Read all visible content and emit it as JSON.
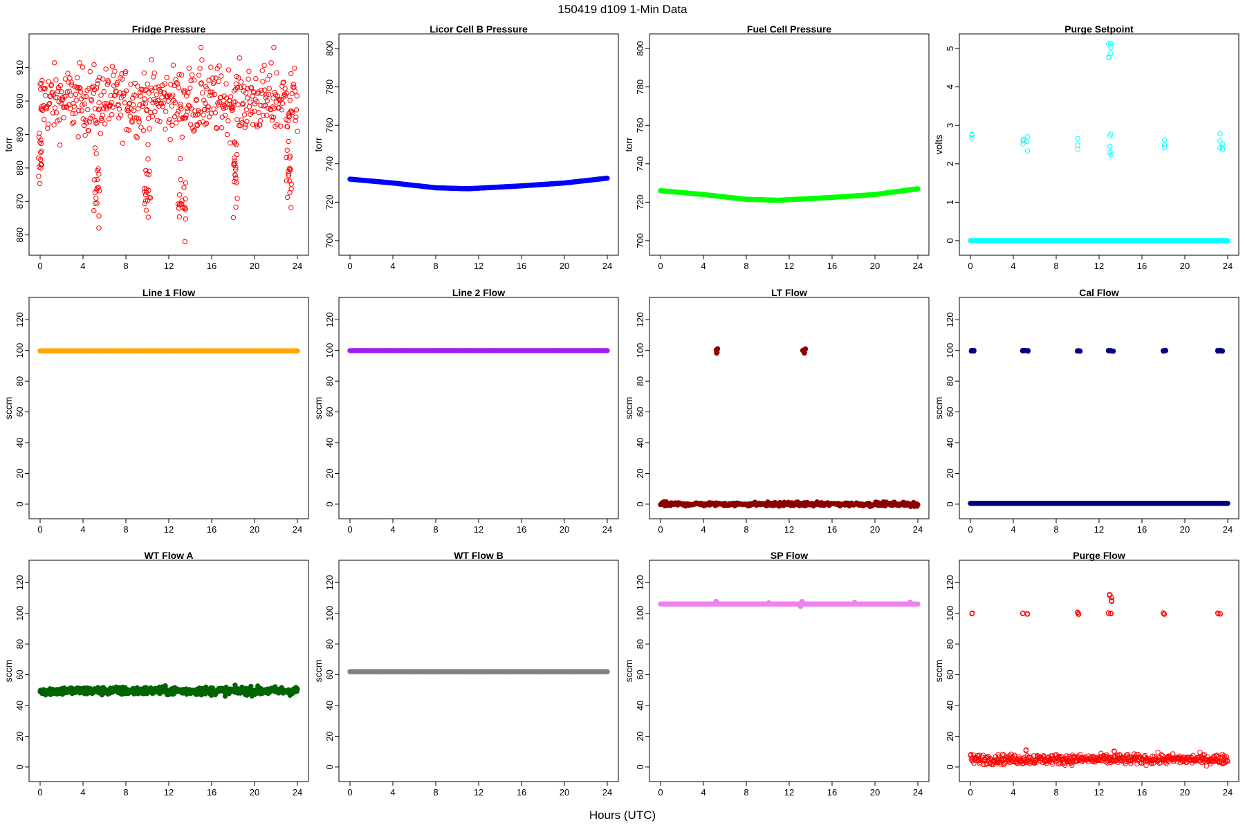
{
  "figure": {
    "title": "150419   d109   1-Min Data",
    "xlabel": "Hours (UTC)"
  },
  "chart_data": [
    {
      "id": "fridge",
      "type": "scatter",
      "title": "Fridge Pressure",
      "ylabel": "torr",
      "color": "#ff0000",
      "marker": "open-circle",
      "xlim": [
        0,
        24
      ],
      "xticks": [
        0,
        4,
        8,
        12,
        16,
        20,
        24
      ],
      "ylim": [
        856,
        918
      ],
      "yticks": [
        860,
        870,
        880,
        890,
        900,
        910
      ],
      "series": [
        {
          "pattern": "noisy",
          "base": [
            [
              0,
              900
            ],
            [
              24,
              900
            ]
          ],
          "noise": 5,
          "dips": [
            [
              0,
              885,
              0.3
            ],
            [
              5.3,
              873,
              0.6
            ],
            [
              10,
              872,
              0.6
            ],
            [
              13.2,
              868,
              0.8
            ],
            [
              18.2,
              877,
              0.4
            ],
            [
              23.2,
              877,
              0.5
            ]
          ],
          "outliers": [
            [
              15,
              916
            ],
            [
              21.8,
              916
            ],
            [
              13.5,
              858
            ]
          ]
        }
      ]
    },
    {
      "id": "licor",
      "type": "scatter",
      "title": "Licor Cell B Pressure",
      "ylabel": "torr",
      "color": "#0000ff",
      "marker": "filled-circle",
      "xlim": [
        0,
        24
      ],
      "xticks": [
        0,
        4,
        8,
        12,
        16,
        20,
        24
      ],
      "ylim": [
        696,
        804
      ],
      "yticks": [
        700,
        720,
        740,
        760,
        780,
        800
      ],
      "series": [
        {
          "pattern": "line",
          "base": [
            [
              0,
              732
            ],
            [
              4,
              730
            ],
            [
              8,
              727.5
            ],
            [
              11,
              727
            ],
            [
              16,
              728.5
            ],
            [
              20,
              730
            ],
            [
              24,
              732.5
            ]
          ]
        }
      ]
    },
    {
      "id": "fuelcell",
      "type": "scatter",
      "title": "Fuel Cell Pressure",
      "ylabel": "torr",
      "color": "#00ff00",
      "marker": "filled-circle",
      "xlim": [
        0,
        24
      ],
      "xticks": [
        0,
        4,
        8,
        12,
        16,
        20,
        24
      ],
      "ylim": [
        696,
        804
      ],
      "yticks": [
        700,
        720,
        740,
        760,
        780,
        800
      ],
      "series": [
        {
          "pattern": "line",
          "base": [
            [
              0,
              726
            ],
            [
              4,
              724
            ],
            [
              8,
              721.5
            ],
            [
              11,
              721
            ],
            [
              16,
              722.5
            ],
            [
              20,
              724
            ],
            [
              24,
              727
            ]
          ]
        }
      ]
    },
    {
      "id": "purge_setpoint",
      "type": "scatter",
      "title": "Purge Setpoint",
      "ylabel": "volts",
      "color": "#00ffff",
      "marker": "open-circle",
      "xlim": [
        0,
        24
      ],
      "xticks": [
        0,
        4,
        8,
        12,
        16,
        20,
        24
      ],
      "ylim": [
        -0.2,
        5.2
      ],
      "yticks": [
        0,
        1,
        2,
        3,
        4,
        5
      ],
      "series": [
        {
          "pattern": "baseline-with-events",
          "baseline": 0,
          "events": [
            [
              0.15,
              2.55
            ],
            [
              4.9,
              2.55
            ],
            [
              5.3,
              2.58
            ],
            [
              10,
              2.5
            ],
            [
              13,
              2.55
            ],
            [
              13.1,
              2.5
            ],
            [
              12.9,
              4.97
            ],
            [
              13.1,
              4.97
            ],
            [
              18.1,
              2.5
            ],
            [
              23.3,
              2.55
            ],
            [
              23.5,
              2.6
            ]
          ]
        }
      ]
    },
    {
      "id": "line1",
      "type": "scatter",
      "title": "Line 1 Flow",
      "ylabel": "sccm",
      "color": "#ffa500",
      "marker": "filled-circle",
      "xlim": [
        0,
        24
      ],
      "xticks": [
        0,
        4,
        8,
        12,
        16,
        20,
        24
      ],
      "ylim": [
        -5,
        130
      ],
      "yticks": [
        0,
        20,
        40,
        60,
        80,
        100,
        120
      ],
      "series": [
        {
          "pattern": "line",
          "base": [
            [
              0,
              99.7
            ],
            [
              24,
              99.7
            ]
          ]
        }
      ]
    },
    {
      "id": "line2",
      "type": "scatter",
      "title": "Line 2 Flow",
      "ylabel": "sccm",
      "color": "#a020f0",
      "marker": "filled-circle",
      "xlim": [
        0,
        24
      ],
      "xticks": [
        0,
        4,
        8,
        12,
        16,
        20,
        24
      ],
      "ylim": [
        -5,
        130
      ],
      "yticks": [
        0,
        20,
        40,
        60,
        80,
        100,
        120
      ],
      "series": [
        {
          "pattern": "line",
          "base": [
            [
              0,
              99.9
            ],
            [
              24,
              99.9
            ]
          ]
        }
      ]
    },
    {
      "id": "lt",
      "type": "scatter",
      "title": "LT Flow",
      "ylabel": "sccm",
      "color": "#8b0000",
      "marker": "filled-circle",
      "xlim": [
        0,
        24
      ],
      "xticks": [
        0,
        4,
        8,
        12,
        16,
        20,
        24
      ],
      "ylim": [
        -5,
        130
      ],
      "yticks": [
        0,
        20,
        40,
        60,
        80,
        100,
        120
      ],
      "series": [
        {
          "pattern": "baseline-with-events",
          "baseline": 0,
          "noise": 1,
          "events": [
            [
              5.2,
              100
            ],
            [
              5.25,
              98.5
            ],
            [
              5.3,
              101
            ],
            [
              13.3,
              100
            ],
            [
              13.4,
              98.5
            ],
            [
              13.5,
              101
            ]
          ]
        }
      ]
    },
    {
      "id": "cal",
      "type": "scatter",
      "title": "Cal Flow",
      "ylabel": "sccm",
      "color": "#000080",
      "marker": "filled-circle",
      "xlim": [
        0,
        24
      ],
      "xticks": [
        0,
        4,
        8,
        12,
        16,
        20,
        24
      ],
      "ylim": [
        -5,
        130
      ],
      "yticks": [
        0,
        20,
        40,
        60,
        80,
        100,
        120
      ],
      "series": [
        {
          "pattern": "baseline-with-events",
          "baseline": 0.5,
          "events": [
            [
              0.1,
              99.8
            ],
            [
              0.3,
              99.8
            ],
            [
              4.9,
              99.8
            ],
            [
              5.1,
              99.8
            ],
            [
              5.35,
              99.8
            ],
            [
              10,
              99.8
            ],
            [
              10.2,
              99.8
            ],
            [
              12.9,
              99.8
            ],
            [
              13.1,
              99.8
            ],
            [
              13.3,
              99.8
            ],
            [
              18,
              99.8
            ],
            [
              18.2,
              99.8
            ],
            [
              23.1,
              99.8
            ],
            [
              23.3,
              99.8
            ],
            [
              23.5,
              99.8
            ]
          ]
        }
      ]
    },
    {
      "id": "wta",
      "type": "scatter",
      "title": "WT Flow A",
      "ylabel": "sccm",
      "color": "#006400",
      "marker": "filled-circle",
      "xlim": [
        0,
        24
      ],
      "xticks": [
        0,
        4,
        8,
        12,
        16,
        20,
        24
      ],
      "ylim": [
        -5,
        130
      ],
      "yticks": [
        0,
        20,
        40,
        60,
        80,
        100,
        120
      ],
      "series": [
        {
          "pattern": "noisy",
          "base": [
            [
              0,
              49.5
            ],
            [
              24,
              49.5
            ]
          ],
          "noise": 1.3
        }
      ]
    },
    {
      "id": "wtb",
      "type": "scatter",
      "title": "WT Flow B",
      "ylabel": "sccm",
      "color": "#808080",
      "marker": "filled-circle",
      "xlim": [
        0,
        24
      ],
      "xticks": [
        0,
        4,
        8,
        12,
        16,
        20,
        24
      ],
      "ylim": [
        -5,
        130
      ],
      "yticks": [
        0,
        20,
        40,
        60,
        80,
        100,
        120
      ],
      "series": [
        {
          "pattern": "line",
          "base": [
            [
              0,
              62
            ],
            [
              24,
              62
            ]
          ]
        }
      ]
    },
    {
      "id": "sp",
      "type": "scatter",
      "title": "SP Flow",
      "ylabel": "sccm",
      "color": "#ee82ee",
      "marker": "filled-circle",
      "xlim": [
        0,
        24
      ],
      "xticks": [
        0,
        4,
        8,
        12,
        16,
        20,
        24
      ],
      "ylim": [
        -5,
        130
      ],
      "yticks": [
        0,
        20,
        40,
        60,
        80,
        100,
        120
      ],
      "series": [
        {
          "pattern": "line",
          "base": [
            [
              0,
              106
            ],
            [
              24,
              106
            ]
          ],
          "events": [
            [
              5.2,
              107.5
            ],
            [
              10.1,
              107
            ],
            [
              13.2,
              107.5
            ],
            [
              13.05,
              104.5
            ],
            [
              18.1,
              107
            ],
            [
              23.3,
              107
            ]
          ]
        }
      ]
    },
    {
      "id": "purge_flow",
      "type": "scatter",
      "title": "Purge Flow",
      "ylabel": "sccm",
      "color": "#ff0000",
      "marker": "open-circle",
      "xlim": [
        0,
        24
      ],
      "xticks": [
        0,
        4,
        8,
        12,
        16,
        20,
        24
      ],
      "ylim": [
        -5,
        130
      ],
      "yticks": [
        0,
        20,
        40,
        60,
        80,
        100,
        120
      ],
      "series": [
        {
          "pattern": "noisy",
          "base": [
            [
              0,
              5
            ],
            [
              24,
              5
            ]
          ],
          "noise": 1.6,
          "events": [
            [
              0.15,
              100
            ],
            [
              4.9,
              100
            ],
            [
              5.3,
              99.5
            ],
            [
              10,
              100.5
            ],
            [
              10.1,
              99.5
            ],
            [
              12.9,
              100
            ],
            [
              13.1,
              100
            ],
            [
              13,
              112
            ],
            [
              13.2,
              110
            ],
            [
              13.15,
              108
            ],
            [
              18,
              100
            ],
            [
              18.1,
              99.5
            ],
            [
              23.1,
              100
            ],
            [
              23.3,
              99.8
            ],
            [
              5.2,
              11
            ],
            [
              13.4,
              10
            ]
          ]
        }
      ]
    }
  ]
}
